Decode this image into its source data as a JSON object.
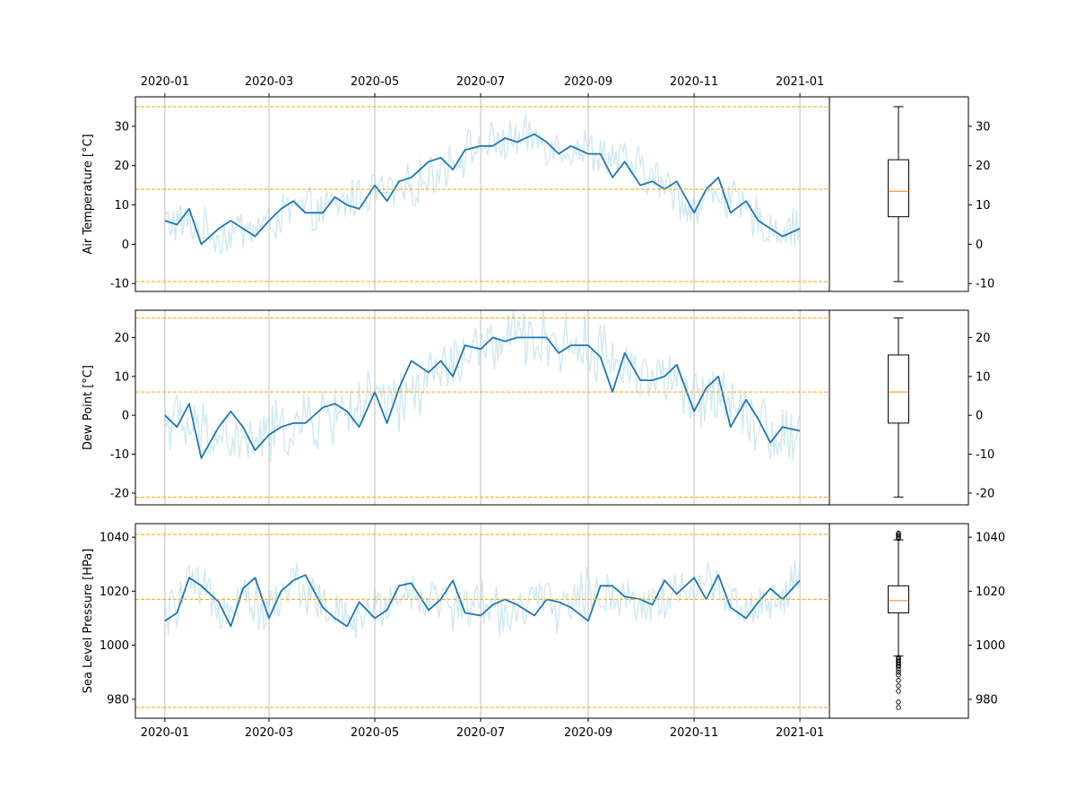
{
  "figure": {
    "x_tick_labels": [
      "2020-01",
      "2020-03",
      "2020-05",
      "2020-07",
      "2020-09",
      "2020-11",
      "2021-01"
    ],
    "colors": {
      "daily": "#add8e6",
      "smoothed": "#1f77b4",
      "reference_lines": "#ffa500",
      "grid": "#b0b0b0",
      "box_median": "#ff7f0e",
      "box": "#000000"
    }
  },
  "chart_data": [
    {
      "type": "line",
      "ylabel": "Air Temperature [°C]",
      "ylim": [
        -12,
        37.5
      ],
      "yticks": [
        -10,
        0,
        10,
        20,
        30
      ],
      "grid": "vertical",
      "x_range": [
        "2019-12-15",
        "2021-01-18"
      ],
      "daily_anchors": {
        "x": [
          "2020-01-01",
          "2020-01-15",
          "2020-02-01",
          "2020-02-15",
          "2020-03-01",
          "2020-03-15",
          "2020-04-01",
          "2020-04-15",
          "2020-05-01",
          "2020-05-15",
          "2020-06-01",
          "2020-06-15",
          "2020-07-01",
          "2020-07-15",
          "2020-08-01",
          "2020-08-15",
          "2020-09-01",
          "2020-09-15",
          "2020-10-01",
          "2020-10-15",
          "2020-11-01",
          "2020-11-15",
          "2020-12-01",
          "2020-12-15",
          "2021-01-01"
        ],
        "y": [
          6,
          5,
          2,
          4,
          5,
          9,
          8,
          11,
          14,
          13,
          17,
          22,
          25,
          26,
          27,
          25,
          24,
          22,
          19,
          15,
          9,
          14,
          8,
          4,
          4
        ]
      },
      "daily_spread": 5,
      "series": [
        {
          "name": "",
          "x": [
            "2020-01-01",
            "2020-01-08",
            "2020-01-15",
            "2020-01-22",
            "2020-02-01",
            "2020-02-08",
            "2020-02-15",
            "2020-02-22",
            "2020-03-01",
            "2020-03-08",
            "2020-03-15",
            "2020-03-22",
            "2020-04-01",
            "2020-04-08",
            "2020-04-15",
            "2020-04-22",
            "2020-05-01",
            "2020-05-08",
            "2020-05-15",
            "2020-05-22",
            "2020-06-01",
            "2020-06-08",
            "2020-06-15",
            "2020-06-22",
            "2020-07-01",
            "2020-07-08",
            "2020-07-15",
            "2020-07-22",
            "2020-08-01",
            "2020-08-08",
            "2020-08-15",
            "2020-08-22",
            "2020-09-01",
            "2020-09-08",
            "2020-09-15",
            "2020-09-22",
            "2020-10-01",
            "2020-10-08",
            "2020-10-15",
            "2020-10-22",
            "2020-11-01",
            "2020-11-08",
            "2020-11-15",
            "2020-11-22",
            "2020-12-01",
            "2020-12-08",
            "2020-12-15",
            "2020-12-22",
            "2021-01-01"
          ],
          "y": [
            6,
            5,
            9,
            0,
            4,
            6,
            4,
            2,
            6,
            9,
            11,
            8,
            8,
            12,
            10,
            9,
            15,
            11,
            16,
            17,
            21,
            22,
            19,
            24,
            25,
            25,
            27,
            26,
            28,
            26,
            23,
            25,
            23,
            23,
            17,
            21,
            15,
            16,
            14,
            16,
            8,
            14,
            17,
            8,
            11,
            6,
            4,
            2,
            4
          ]
        }
      ],
      "reference_lines": [
        35,
        14,
        -9.5
      ],
      "box": {
        "whisker_low": -9.5,
        "q1": 7,
        "median": 13.5,
        "q3": 21.5,
        "whisker_high": 35,
        "outliers": []
      }
    },
    {
      "type": "line",
      "ylabel": "Dew Point [°C]",
      "ylim": [
        -23,
        27
      ],
      "yticks": [
        -20,
        -10,
        0,
        10,
        20
      ],
      "grid": "vertical",
      "x_range": [
        "2019-12-15",
        "2021-01-18"
      ],
      "daily_anchors": {
        "x": [
          "2020-01-01",
          "2020-01-15",
          "2020-02-01",
          "2020-02-15",
          "2020-03-01",
          "2020-03-15",
          "2020-04-01",
          "2020-04-15",
          "2020-05-01",
          "2020-05-15",
          "2020-06-01",
          "2020-06-15",
          "2020-07-01",
          "2020-07-15",
          "2020-08-01",
          "2020-08-15",
          "2020-09-01",
          "2020-09-15",
          "2020-10-01",
          "2020-10-15",
          "2020-11-01",
          "2020-11-15",
          "2020-12-01",
          "2020-12-15",
          "2021-01-01"
        ],
        "y": [
          0,
          -4,
          -5,
          -8,
          -5,
          -3,
          -1,
          2,
          4,
          2,
          10,
          13,
          17,
          19,
          20,
          19,
          17,
          15,
          11,
          10,
          3,
          7,
          2,
          -4,
          -5
        ]
      },
      "daily_spread": 7,
      "series": [
        {
          "name": "",
          "x": [
            "2020-01-01",
            "2020-01-08",
            "2020-01-15",
            "2020-01-22",
            "2020-02-01",
            "2020-02-08",
            "2020-02-15",
            "2020-02-22",
            "2020-03-01",
            "2020-03-08",
            "2020-03-15",
            "2020-03-22",
            "2020-04-01",
            "2020-04-08",
            "2020-04-15",
            "2020-04-22",
            "2020-05-01",
            "2020-05-08",
            "2020-05-15",
            "2020-05-22",
            "2020-06-01",
            "2020-06-08",
            "2020-06-15",
            "2020-06-22",
            "2020-07-01",
            "2020-07-08",
            "2020-07-15",
            "2020-07-22",
            "2020-08-01",
            "2020-08-08",
            "2020-08-15",
            "2020-08-22",
            "2020-09-01",
            "2020-09-08",
            "2020-09-15",
            "2020-09-22",
            "2020-10-01",
            "2020-10-08",
            "2020-10-15",
            "2020-10-22",
            "2020-11-01",
            "2020-11-08",
            "2020-11-15",
            "2020-11-22",
            "2020-12-01",
            "2020-12-08",
            "2020-12-15",
            "2020-12-22",
            "2021-01-01"
          ],
          "y": [
            0,
            -3,
            3,
            -11,
            -3,
            1,
            -3,
            -9,
            -5,
            -3,
            -2,
            -2,
            2,
            3,
            1,
            -3,
            6,
            -2,
            7,
            14,
            11,
            14,
            10,
            18,
            17,
            20,
            19,
            20,
            20,
            20,
            16,
            18,
            18,
            15,
            6,
            16,
            9,
            9,
            10,
            13,
            1,
            7,
            10,
            -3,
            4,
            -1,
            -7,
            -3,
            -4
          ]
        }
      ],
      "reference_lines": [
        25,
        6,
        -21
      ],
      "box": {
        "whisker_low": -21,
        "q1": -2,
        "median": 6,
        "q3": 15.5,
        "whisker_high": 25,
        "outliers": []
      }
    },
    {
      "type": "line",
      "ylabel": "Sea Level Pressure [HPa]",
      "ylim": [
        973,
        1045
      ],
      "yticks": [
        980,
        1000,
        1020,
        1040
      ],
      "grid": "vertical",
      "x_range": [
        "2019-12-15",
        "2021-01-18"
      ],
      "daily_anchors": {
        "x": [
          "2020-01-01",
          "2020-01-15",
          "2020-02-01",
          "2020-02-15",
          "2020-03-01",
          "2020-03-15",
          "2020-04-01",
          "2020-04-15",
          "2020-05-01",
          "2020-05-15",
          "2020-06-01",
          "2020-06-15",
          "2020-07-01",
          "2020-07-15",
          "2020-08-01",
          "2020-08-15",
          "2020-09-01",
          "2020-09-15",
          "2020-10-01",
          "2020-10-15",
          "2020-11-01",
          "2020-11-15",
          "2020-12-01",
          "2020-12-15",
          "2021-01-01"
        ],
        "y": [
          1009,
          1022,
          1015,
          1020,
          1012,
          1024,
          1015,
          1008,
          1013,
          1020,
          1018,
          1014,
          1016,
          1012,
          1016,
          1014,
          1020,
          1019,
          1016,
          1017,
          1022,
          1022,
          1013,
          1016,
          1024
        ]
      },
      "daily_spread": 8,
      "series": [
        {
          "name": "",
          "x": [
            "2020-01-01",
            "2020-01-08",
            "2020-01-15",
            "2020-01-22",
            "2020-02-01",
            "2020-02-08",
            "2020-02-15",
            "2020-02-22",
            "2020-03-01",
            "2020-03-08",
            "2020-03-15",
            "2020-03-22",
            "2020-04-01",
            "2020-04-08",
            "2020-04-15",
            "2020-04-22",
            "2020-05-01",
            "2020-05-08",
            "2020-05-15",
            "2020-05-22",
            "2020-06-01",
            "2020-06-08",
            "2020-06-15",
            "2020-06-22",
            "2020-07-01",
            "2020-07-08",
            "2020-07-15",
            "2020-07-22",
            "2020-08-01",
            "2020-08-08",
            "2020-08-15",
            "2020-08-22",
            "2020-09-01",
            "2020-09-08",
            "2020-09-15",
            "2020-09-22",
            "2020-10-01",
            "2020-10-08",
            "2020-10-15",
            "2020-10-22",
            "2020-11-01",
            "2020-11-08",
            "2020-11-15",
            "2020-11-22",
            "2020-12-01",
            "2020-12-08",
            "2020-12-15",
            "2020-12-22",
            "2021-01-01"
          ],
          "y": [
            1009,
            1012,
            1025,
            1022,
            1016,
            1007,
            1021,
            1025,
            1010,
            1020,
            1024,
            1026,
            1014,
            1010,
            1007,
            1016,
            1010,
            1013,
            1022,
            1023,
            1013,
            1017,
            1024,
            1012,
            1011,
            1015,
            1017,
            1015,
            1011,
            1017,
            1016,
            1014,
            1009,
            1022,
            1022,
            1018,
            1017,
            1015,
            1024,
            1019,
            1025,
            1017,
            1026,
            1014,
            1010,
            1016,
            1021,
            1017,
            1024
          ]
        }
      ],
      "reference_lines": [
        1041,
        1017,
        977
      ],
      "box": {
        "whisker_low": 996,
        "q1": 1012,
        "median": 1016.5,
        "q3": 1022,
        "whisker_high": 1039,
        "outliers": [
          1039.5,
          1040,
          1040.5,
          1041,
          1041.5,
          995.5,
          995,
          994.5,
          994,
          993.5,
          993,
          992.5,
          992,
          991,
          990,
          989,
          987,
          985,
          983,
          979,
          977
        ]
      }
    }
  ]
}
